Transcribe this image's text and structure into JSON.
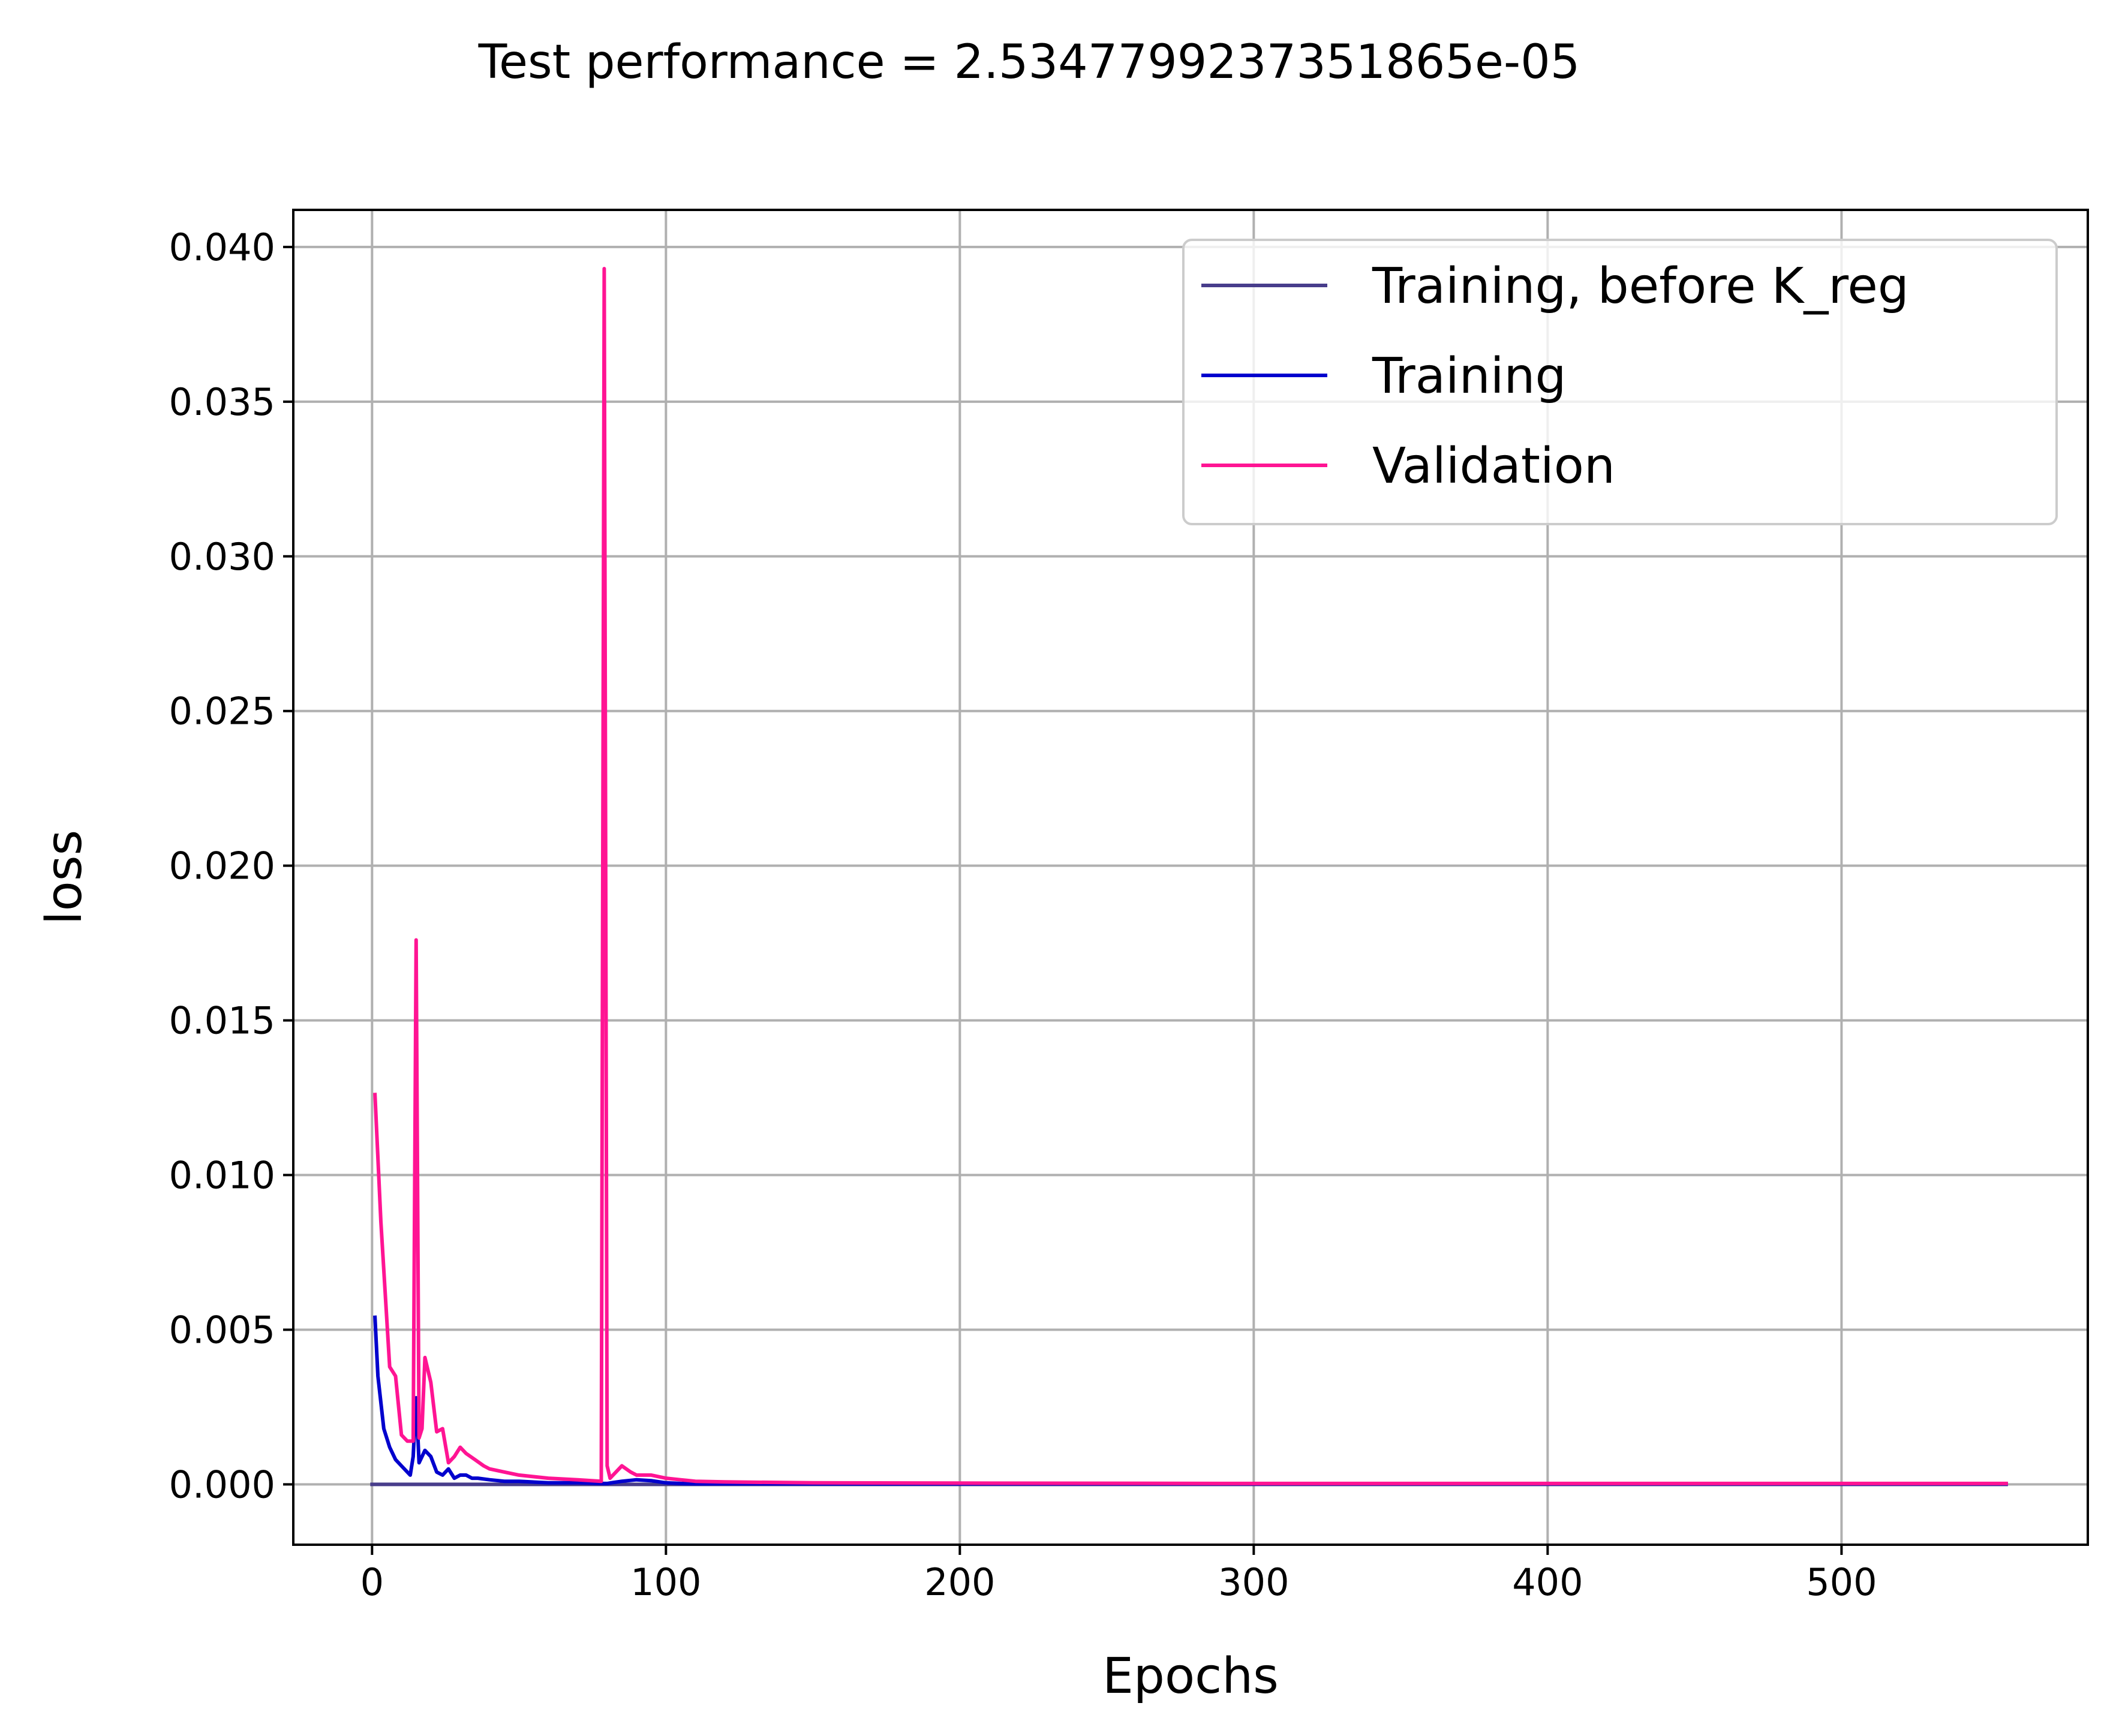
{
  "chart_data": {
    "type": "line",
    "title": "Test performance = 2.5347799237351865e-05",
    "xlabel": "Epochs",
    "ylabel": "loss",
    "xlim": [
      -26.8,
      583.8
    ],
    "ylim": [
      -0.00195,
      0.0412
    ],
    "xticks": [
      0,
      100,
      200,
      300,
      400,
      500
    ],
    "xtick_labels": [
      "0",
      "100",
      "200",
      "300",
      "400",
      "500"
    ],
    "yticks": [
      0.0,
      0.005,
      0.01,
      0.015,
      0.02,
      0.025,
      0.03,
      0.035,
      0.04
    ],
    "ytick_labels": [
      "0.000",
      "0.005",
      "0.010",
      "0.015",
      "0.020",
      "0.025",
      "0.030",
      "0.035",
      "0.040"
    ],
    "grid": true,
    "legend_position": "upper right",
    "series": [
      {
        "name": "Training, before K_reg",
        "color": "#483D8B",
        "x": [
          0,
          556
        ],
        "y": [
          0.0,
          0.0
        ]
      },
      {
        "name": "Training",
        "color": "#0000CD",
        "x": [
          1,
          2,
          4,
          6,
          8,
          10,
          12,
          13,
          14,
          15,
          16,
          18,
          20,
          22,
          24,
          26,
          28,
          30,
          32,
          34,
          36,
          40,
          45,
          50,
          60,
          70,
          78,
          80,
          82,
          85,
          90,
          95,
          100,
          105,
          110,
          120,
          150,
          200,
          300,
          400,
          500,
          556
        ],
        "y": [
          0.0054,
          0.0035,
          0.0018,
          0.0012,
          0.0008,
          0.0006,
          0.0004,
          0.0003,
          0.0009,
          0.0028,
          0.0007,
          0.0011,
          0.0009,
          0.0004,
          0.0003,
          0.0005,
          0.0002,
          0.0003,
          0.0003,
          0.0002,
          0.0002,
          0.00015,
          0.0001,
          0.0001,
          5e-05,
          5e-05,
          3e-05,
          3e-05,
          6e-05,
          0.0001,
          0.00015,
          0.00012,
          5e-05,
          3e-05,
          2e-05,
          2e-05,
          2e-05,
          2e-05,
          2e-05,
          2e-05,
          2e-05,
          2e-05
        ]
      },
      {
        "name": "Validation",
        "color": "#FF1493",
        "x": [
          1,
          3,
          6,
          8,
          10,
          12,
          14,
          15,
          16,
          17,
          18,
          20,
          22,
          24,
          26,
          28,
          30,
          32,
          35,
          38,
          40,
          45,
          50,
          55,
          60,
          70,
          78,
          79,
          80,
          81,
          82,
          85,
          88,
          90,
          95,
          100,
          105,
          110,
          120,
          150,
          200,
          300,
          400,
          500,
          556
        ],
        "y": [
          0.0126,
          0.0085,
          0.0038,
          0.0035,
          0.0016,
          0.0014,
          0.0014,
          0.0176,
          0.0015,
          0.0018,
          0.0041,
          0.0033,
          0.0017,
          0.0018,
          0.0007,
          0.0009,
          0.0012,
          0.001,
          0.0008,
          0.0006,
          0.0005,
          0.0004,
          0.0003,
          0.00025,
          0.0002,
          0.00015,
          0.0001,
          0.0393,
          0.0006,
          0.0002,
          0.0003,
          0.0006,
          0.0004,
          0.0003,
          0.0003,
          0.0002,
          0.00015,
          0.0001,
          8e-05,
          5e-05,
          4e-05,
          3e-05,
          3e-05,
          3e-05,
          3e-05
        ]
      }
    ]
  }
}
